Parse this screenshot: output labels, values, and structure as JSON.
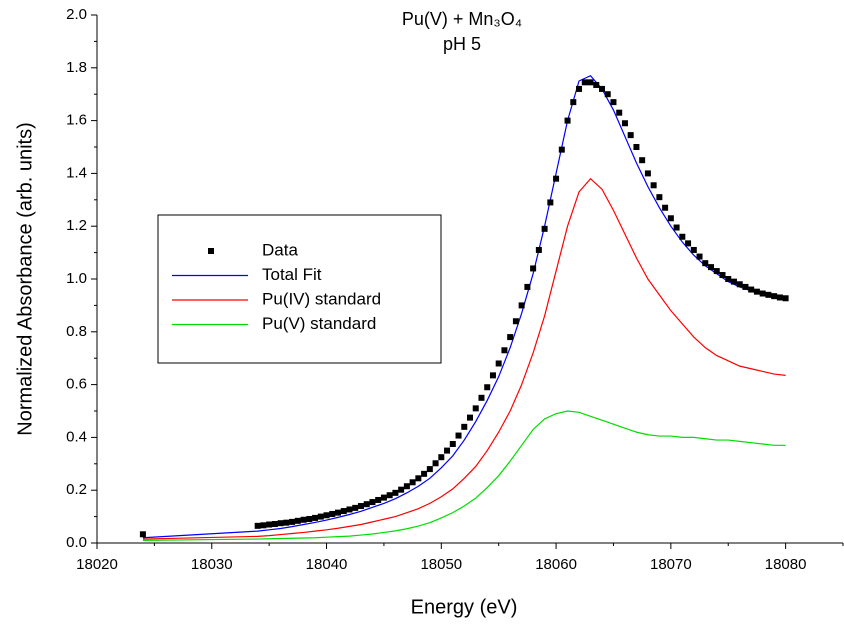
{
  "chart_data": {
    "type": "line",
    "title": "Pu(V) + Mn₃O₄",
    "subtitle": "pH 5",
    "x_label": "Energy (eV)",
    "y_label": "Normalized Absorbance (arb. units)",
    "xlim": [
      18020,
      18085
    ],
    "ylim": [
      0,
      2
    ],
    "xticks": [
      18020,
      18030,
      18040,
      18050,
      18060,
      18070,
      18080
    ],
    "yticks": [
      {
        "value": 0,
        "label": "0.0"
      },
      0.2,
      0.4,
      0.6,
      0.8,
      {
        "value": 1,
        "label": "1.0"
      },
      1.2,
      1.4,
      1.6,
      1.8,
      {
        "value": 2,
        "label": "2.0"
      }
    ],
    "series": [
      {
        "name": "Data",
        "color": "#000000",
        "mode": "markers",
        "x": [
          18024,
          18034,
          18034.5,
          18035,
          18035.5,
          18036,
          18036.5,
          18037,
          18037.5,
          18038,
          18038.5,
          18039,
          18039.5,
          18040,
          18040.5,
          18041,
          18041.5,
          18042,
          18042.5,
          18043,
          18043.5,
          18044,
          18044.5,
          18045,
          18045.5,
          18046,
          18046.5,
          18047,
          18047.5,
          18048,
          18048.5,
          18049,
          18049.5,
          18050,
          18050.5,
          18051,
          18051.5,
          18052,
          18052.5,
          18053,
          18053.5,
          18054,
          18054.5,
          18055,
          18055.5,
          18056,
          18056.5,
          18057,
          18057.5,
          18058,
          18058.5,
          18059,
          18059.5,
          18060,
          18060.5,
          18061,
          18061.5,
          18062,
          18062.5,
          18063,
          18063.5,
          18064,
          18064.5,
          18065,
          18065.5,
          18066,
          18066.5,
          18067,
          18067.5,
          18068,
          18068.5,
          18069,
          18069.5,
          18070,
          18070.5,
          18071,
          18071.5,
          18072,
          18072.5,
          18073,
          18073.5,
          18074,
          18074.5,
          18075,
          18075.5,
          18076,
          18076.5,
          18077,
          18077.5,
          18078,
          18078.5,
          18079,
          18079.5,
          18080
        ],
        "values": [
          0.033,
          0.065,
          0.067,
          0.07,
          0.072,
          0.075,
          0.077,
          0.08,
          0.084,
          0.088,
          0.091,
          0.095,
          0.1,
          0.105,
          0.11,
          0.115,
          0.121,
          0.127,
          0.133,
          0.14,
          0.147,
          0.155,
          0.163,
          0.172,
          0.181,
          0.19,
          0.202,
          0.215,
          0.23,
          0.245,
          0.262,
          0.28,
          0.302,
          0.325,
          0.35,
          0.375,
          0.407,
          0.44,
          0.475,
          0.51,
          0.55,
          0.59,
          0.635,
          0.68,
          0.73,
          0.78,
          0.84,
          0.9,
          0.97,
          1.04,
          1.11,
          1.19,
          1.29,
          1.38,
          1.49,
          1.6,
          1.67,
          1.72,
          1.745,
          1.745,
          1.735,
          1.72,
          1.7,
          1.67,
          1.63,
          1.59,
          1.545,
          1.5,
          1.45,
          1.4,
          1.355,
          1.31,
          1.27,
          1.23,
          1.195,
          1.16,
          1.135,
          1.11,
          1.085,
          1.06,
          1.045,
          1.03,
          1.015,
          1.0,
          0.99,
          0.98,
          0.97,
          0.96,
          0.952,
          0.945,
          0.94,
          0.935,
          0.93,
          0.927
        ]
      },
      {
        "name": "Total Fit",
        "color": "#0000ff",
        "mode": "line",
        "x": [
          18024,
          18034,
          18035,
          18036,
          18037,
          18038,
          18039,
          18040,
          18041,
          18042,
          18043,
          18044,
          18045,
          18046,
          18047,
          18048,
          18049,
          18050,
          18051,
          18052,
          18053,
          18054,
          18055,
          18056,
          18057,
          18058,
          18059,
          18060,
          18061,
          18062,
          18063,
          18064,
          18065,
          18066,
          18067,
          18068,
          18069,
          18070,
          18071,
          18072,
          18073,
          18074,
          18075,
          18076,
          18077,
          18078,
          18079,
          18080
        ],
        "values": [
          0.02,
          0.045,
          0.05,
          0.055,
          0.062,
          0.07,
          0.078,
          0.087,
          0.097,
          0.108,
          0.12,
          0.135,
          0.15,
          0.168,
          0.19,
          0.215,
          0.245,
          0.285,
          0.33,
          0.39,
          0.46,
          0.54,
          0.63,
          0.74,
          0.87,
          1.02,
          1.2,
          1.4,
          1.6,
          1.75,
          1.77,
          1.72,
          1.64,
          1.54,
          1.44,
          1.35,
          1.27,
          1.2,
          1.14,
          1.09,
          1.05,
          1.02,
          0.99,
          0.97,
          0.955,
          0.94,
          0.93,
          0.925
        ]
      },
      {
        "name": "Pu(IV) standard",
        "color": "#ff0000",
        "mode": "line",
        "x": [
          18024,
          18034,
          18035,
          18036,
          18037,
          18038,
          18039,
          18040,
          18041,
          18042,
          18043,
          18044,
          18045,
          18046,
          18047,
          18048,
          18049,
          18050,
          18051,
          18052,
          18053,
          18054,
          18055,
          18056,
          18057,
          18058,
          18059,
          18060,
          18061,
          18062,
          18063,
          18064,
          18065,
          18066,
          18067,
          18068,
          18069,
          18070,
          18071,
          18072,
          18073,
          18074,
          18075,
          18076,
          18077,
          18078,
          18079,
          18080
        ],
        "values": [
          0.015,
          0.025,
          0.028,
          0.032,
          0.036,
          0.04,
          0.045,
          0.05,
          0.056,
          0.063,
          0.07,
          0.08,
          0.09,
          0.1,
          0.115,
          0.13,
          0.15,
          0.175,
          0.205,
          0.245,
          0.29,
          0.35,
          0.42,
          0.5,
          0.6,
          0.72,
          0.86,
          1.03,
          1.2,
          1.33,
          1.38,
          1.34,
          1.26,
          1.17,
          1.08,
          1.0,
          0.94,
          0.88,
          0.83,
          0.78,
          0.74,
          0.71,
          0.69,
          0.67,
          0.66,
          0.65,
          0.64,
          0.635
        ]
      },
      {
        "name": "Pu(V) standard",
        "color": "#00dd00",
        "mode": "line",
        "x": [
          18024,
          18034,
          18035,
          18036,
          18037,
          18038,
          18039,
          18040,
          18041,
          18042,
          18043,
          18044,
          18045,
          18046,
          18047,
          18048,
          18049,
          18050,
          18051,
          18052,
          18053,
          18054,
          18055,
          18056,
          18057,
          18058,
          18059,
          18060,
          18061,
          18062,
          18063,
          18064,
          18065,
          18066,
          18067,
          18068,
          18069,
          18070,
          18071,
          18072,
          18073,
          18074,
          18075,
          18076,
          18077,
          18078,
          18079,
          18080
        ],
        "values": [
          0.01,
          0.015,
          0.016,
          0.017,
          0.018,
          0.019,
          0.02,
          0.022,
          0.024,
          0.026,
          0.03,
          0.034,
          0.04,
          0.046,
          0.054,
          0.064,
          0.077,
          0.095,
          0.115,
          0.14,
          0.17,
          0.21,
          0.255,
          0.31,
          0.37,
          0.43,
          0.47,
          0.49,
          0.5,
          0.495,
          0.48,
          0.465,
          0.45,
          0.435,
          0.42,
          0.41,
          0.405,
          0.405,
          0.4,
          0.4,
          0.395,
          0.39,
          0.39,
          0.385,
          0.38,
          0.375,
          0.37,
          0.37
        ]
      }
    ]
  }
}
